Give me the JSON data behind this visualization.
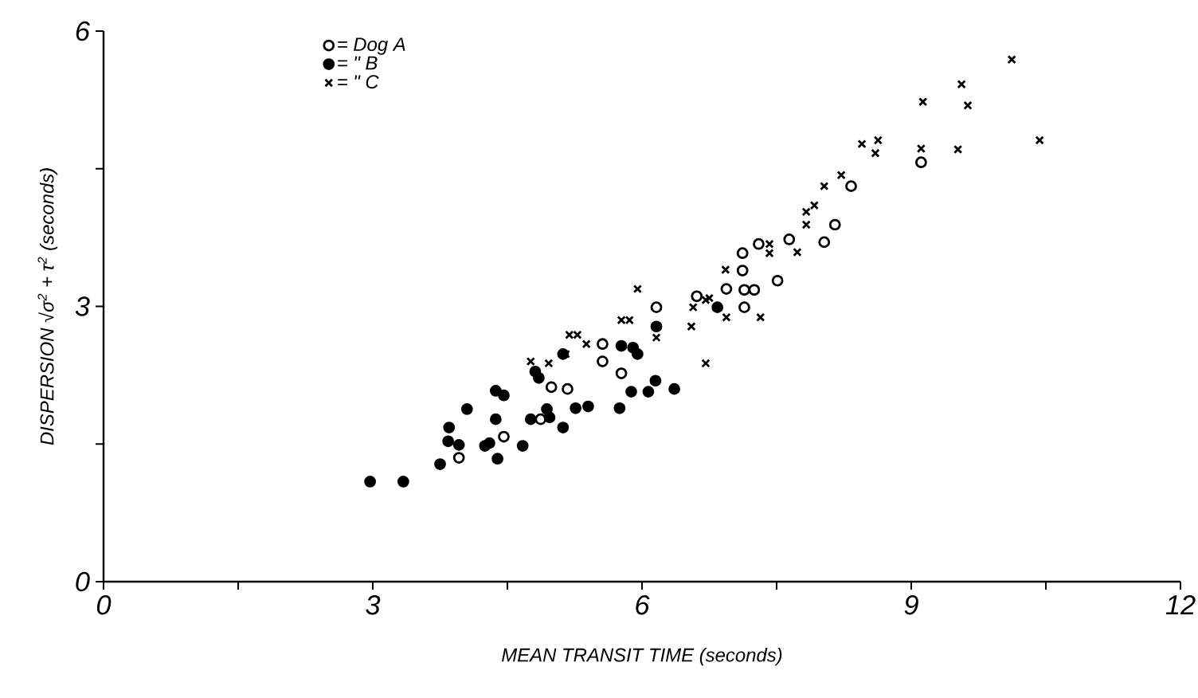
{
  "chart_data": {
    "type": "scatter",
    "xlabel": "MEAN  TRANSIT  TIME   (seconds)",
    "ylabel": "DISPERSION  √σ$^{2}$ + τ$^{2}$   (seconds)",
    "xlim": [
      0,
      12
    ],
    "ylim": [
      0,
      6
    ],
    "xticks": [
      0,
      {
        "value": 1.5,
        "label": null
      },
      3,
      {
        "value": 4.5,
        "label": null
      },
      6,
      {
        "value": 7.5,
        "label": null
      },
      9,
      {
        "value": 10.5,
        "label": null
      },
      12
    ],
    "yticks": [
      0,
      {
        "value": 1.5,
        "label": null
      },
      3,
      {
        "value": 4.5,
        "label": null
      },
      6
    ],
    "legend": "top left",
    "grid": false,
    "series": [
      {
        "name": "= Dog  A",
        "color": "#000000",
        "marker": "circle",
        "x": [
          3.96,
          4.46,
          4.99,
          5.17,
          4.87,
          5.56,
          5.56,
          5.77,
          6.16,
          6.61,
          6.94,
          7.12,
          7.12,
          7.14,
          7.25,
          7.14,
          7.3,
          7.51,
          7.64,
          8.03,
          8.15,
          8.33,
          9.11
        ],
        "values": [
          1.35,
          1.58,
          2.12,
          2.1,
          1.77,
          2.59,
          2.4,
          2.27,
          2.99,
          3.11,
          3.19,
          3.39,
          3.58,
          3.18,
          3.18,
          2.99,
          3.68,
          3.28,
          3.73,
          3.7,
          3.89,
          4.31,
          4.57
        ]
      },
      {
        "name": "=  \"   B",
        "color": "#000000",
        "marker": "circle",
        "x": [
          2.97,
          3.34,
          3.75,
          3.85,
          3.84,
          3.96,
          4.05,
          4.37,
          4.46,
          4.37,
          4.25,
          4.3,
          4.39,
          4.67,
          4.76,
          4.81,
          4.85,
          4.94,
          4.97,
          5.12,
          5.26,
          5.4,
          5.75,
          5.88,
          6.07,
          6.15,
          6.36,
          5.77,
          5.9,
          5.95,
          6.16,
          5.12,
          6.84
        ],
        "values": [
          1.09,
          1.09,
          1.28,
          1.68,
          1.53,
          1.49,
          1.88,
          2.08,
          2.03,
          1.77,
          1.48,
          1.51,
          1.34,
          1.48,
          1.77,
          2.29,
          2.22,
          1.88,
          1.79,
          1.68,
          1.89,
          1.91,
          1.89,
          2.07,
          2.07,
          2.19,
          2.1,
          2.57,
          2.55,
          2.48,
          2.78,
          2.48,
          2.99
        ]
      },
      {
        "name": "=  \"   C",
        "color": "#000000",
        "marker": "cross",
        "x": [
          5.95,
          5.77,
          5.86,
          5.19,
          5.28,
          5.38,
          5.15,
          4.76,
          4.96,
          6.16,
          6.55,
          6.71,
          6.75,
          6.57,
          6.71,
          6.94,
          7.32,
          6.93,
          7.42,
          7.42,
          7.73,
          7.83,
          7.83,
          7.92,
          8.03,
          8.22,
          8.45,
          8.63,
          8.6,
          10.12,
          9.56,
          9.63,
          9.13,
          9.11,
          9.52,
          10.43
        ],
        "values": [
          3.19,
          2.85,
          2.85,
          2.69,
          2.69,
          2.59,
          2.48,
          2.4,
          2.38,
          2.66,
          2.78,
          2.38,
          3.09,
          2.99,
          3.07,
          2.88,
          2.88,
          3.4,
          3.68,
          3.58,
          3.59,
          4.03,
          3.89,
          4.1,
          4.31,
          4.43,
          4.77,
          4.81,
          4.67,
          5.69,
          5.42,
          5.19,
          5.23,
          4.72,
          4.71,
          4.81
        ]
      }
    ]
  }
}
